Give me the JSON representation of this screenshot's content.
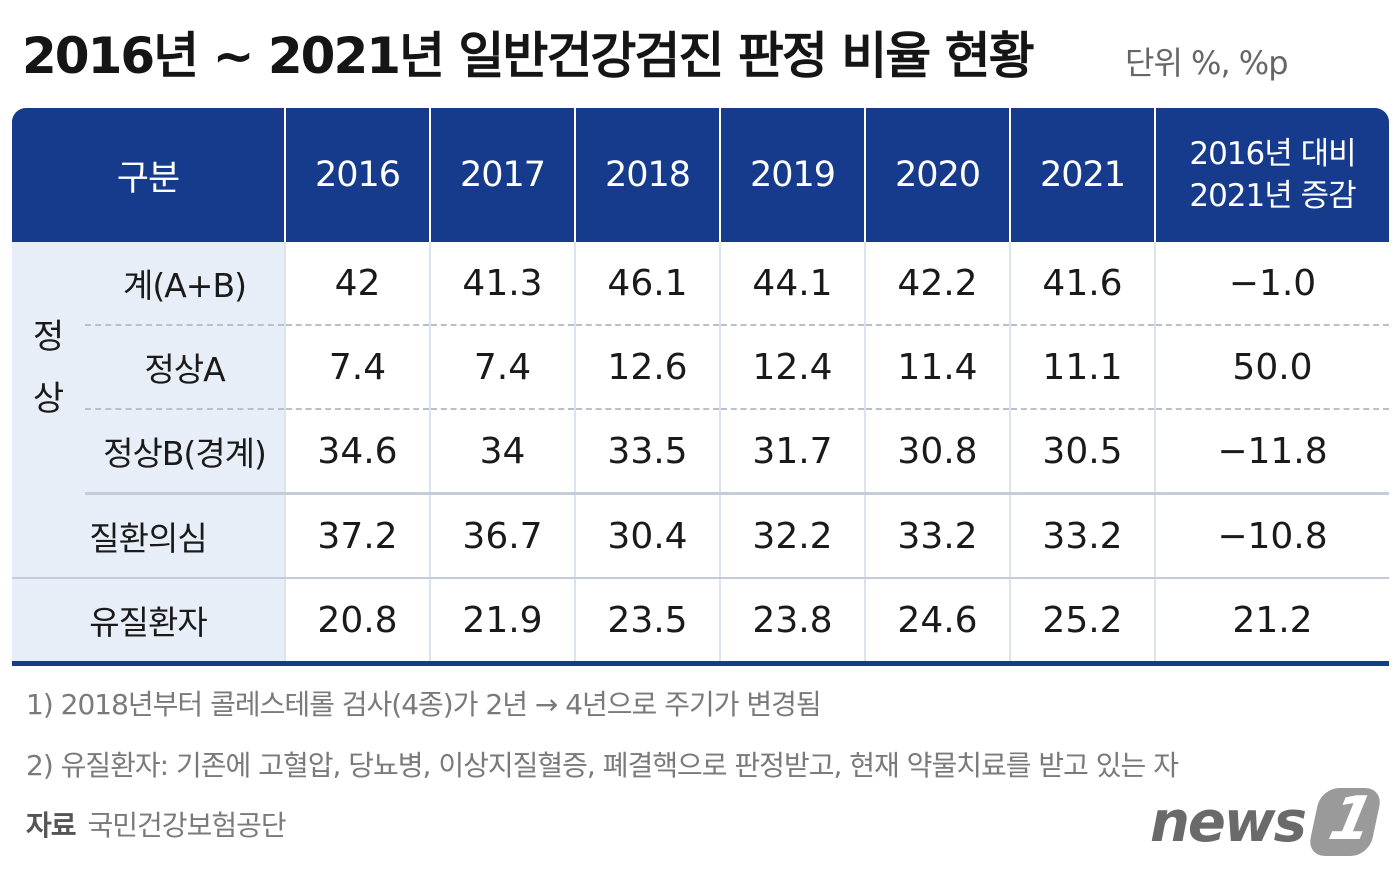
{
  "title": "2016년 ~ 2021년 일반건강검진 판정 비율 현황",
  "unit": "단위  %, %p",
  "table": {
    "header": {
      "category": "구분",
      "years": [
        "2016",
        "2017",
        "2018",
        "2019",
        "2020",
        "2021"
      ],
      "change_line1": "2016년 대비",
      "change_line2": "2021년 증감"
    },
    "group_label_1": "정",
    "group_label_2": "상",
    "rows": [
      {
        "label": "계(A+B)",
        "values": [
          "42",
          "41.3",
          "46.1",
          "44.1",
          "42.2",
          "41.6"
        ],
        "change": "−1.0"
      },
      {
        "label": "정상A",
        "values": [
          "7.4",
          "7.4",
          "12.6",
          "12.4",
          "11.4",
          "11.1"
        ],
        "change": "50.0"
      },
      {
        "label": "정상B(경계)",
        "values": [
          "34.6",
          "34",
          "33.5",
          "31.7",
          "30.8",
          "30.5"
        ],
        "change": "−11.8"
      },
      {
        "label": "질환의심",
        "values": [
          "37.2",
          "36.7",
          "30.4",
          "32.2",
          "33.2",
          "33.2"
        ],
        "change": "−10.8"
      },
      {
        "label": "유질환자",
        "values": [
          "20.8",
          "21.9",
          "23.5",
          "23.8",
          "24.6",
          "25.2"
        ],
        "change": "21.2"
      }
    ]
  },
  "notes": [
    "1) 2018년부터 콜레스테롤 검사(4종)가 2년 → 4년으로 주기가 변경됨",
    "2) 유질환자: 기존에 고혈압, 당뇨병, 이상지질혈증, 폐결핵으로 판정받고, 현재 약물치료를 받고 있는 자"
  ],
  "source_label": "자료",
  "source": "국민건강보험공단",
  "logo": {
    "text": "news",
    "mark": "1"
  }
}
